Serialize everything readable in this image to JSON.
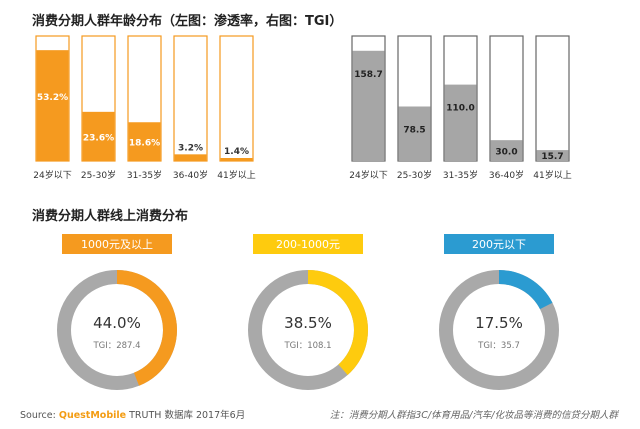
{
  "titles": {
    "top": "消费分期人群年龄分布（左图：渗透率，右图：TGI）",
    "middle": "消费分期人群线上消费分布"
  },
  "footer": {
    "source_label": "Source:",
    "brand": "QuestMobile",
    "source_rest": "TRUTH 数据库 2017年6月",
    "note": "注：消费分期人群指3C/体育用品/汽车/化妆品等消费的信贷分期人群"
  },
  "colors": {
    "orange": "#f59a1f",
    "gray": "#a6a6a6",
    "yellow": "#fecb0e",
    "blue": "#2b9bd1"
  },
  "chart_data": [
    {
      "type": "bar",
      "title": "渗透率",
      "categories": [
        "24岁以下",
        "25-30岁",
        "31-35岁",
        "36-40岁",
        "41岁以上"
      ],
      "values": [
        53.2,
        23.6,
        18.6,
        3.2,
        1.4
      ],
      "value_labels": [
        "53.2%",
        "23.6%",
        "18.6%",
        "3.2%",
        "1.4%"
      ],
      "ylim": [
        0,
        60
      ]
    },
    {
      "type": "bar",
      "title": "TGI",
      "categories": [
        "24岁以下",
        "25-30岁",
        "31-35岁",
        "36-40岁",
        "41岁以上"
      ],
      "values": [
        158.7,
        78.5,
        110.0,
        30.0,
        15.7
      ],
      "value_labels": [
        "158.7",
        "78.5",
        "110.0",
        "30.0",
        "15.7"
      ],
      "ylim": [
        0,
        180
      ]
    },
    {
      "type": "pie",
      "title": "消费分期人群线上消费分布",
      "donuts": [
        {
          "label": "1000元及以上",
          "value": 44.0,
          "pct_label": "44.0%",
          "tgi_label": "TGI：287.4"
        },
        {
          "label": "200-1000元",
          "value": 38.5,
          "pct_label": "38.5%",
          "tgi_label": "TGI：108.1"
        },
        {
          "label": "200元以下",
          "value": 17.5,
          "pct_label": "17.5%",
          "tgi_label": "TGI：35.7"
        }
      ]
    }
  ]
}
